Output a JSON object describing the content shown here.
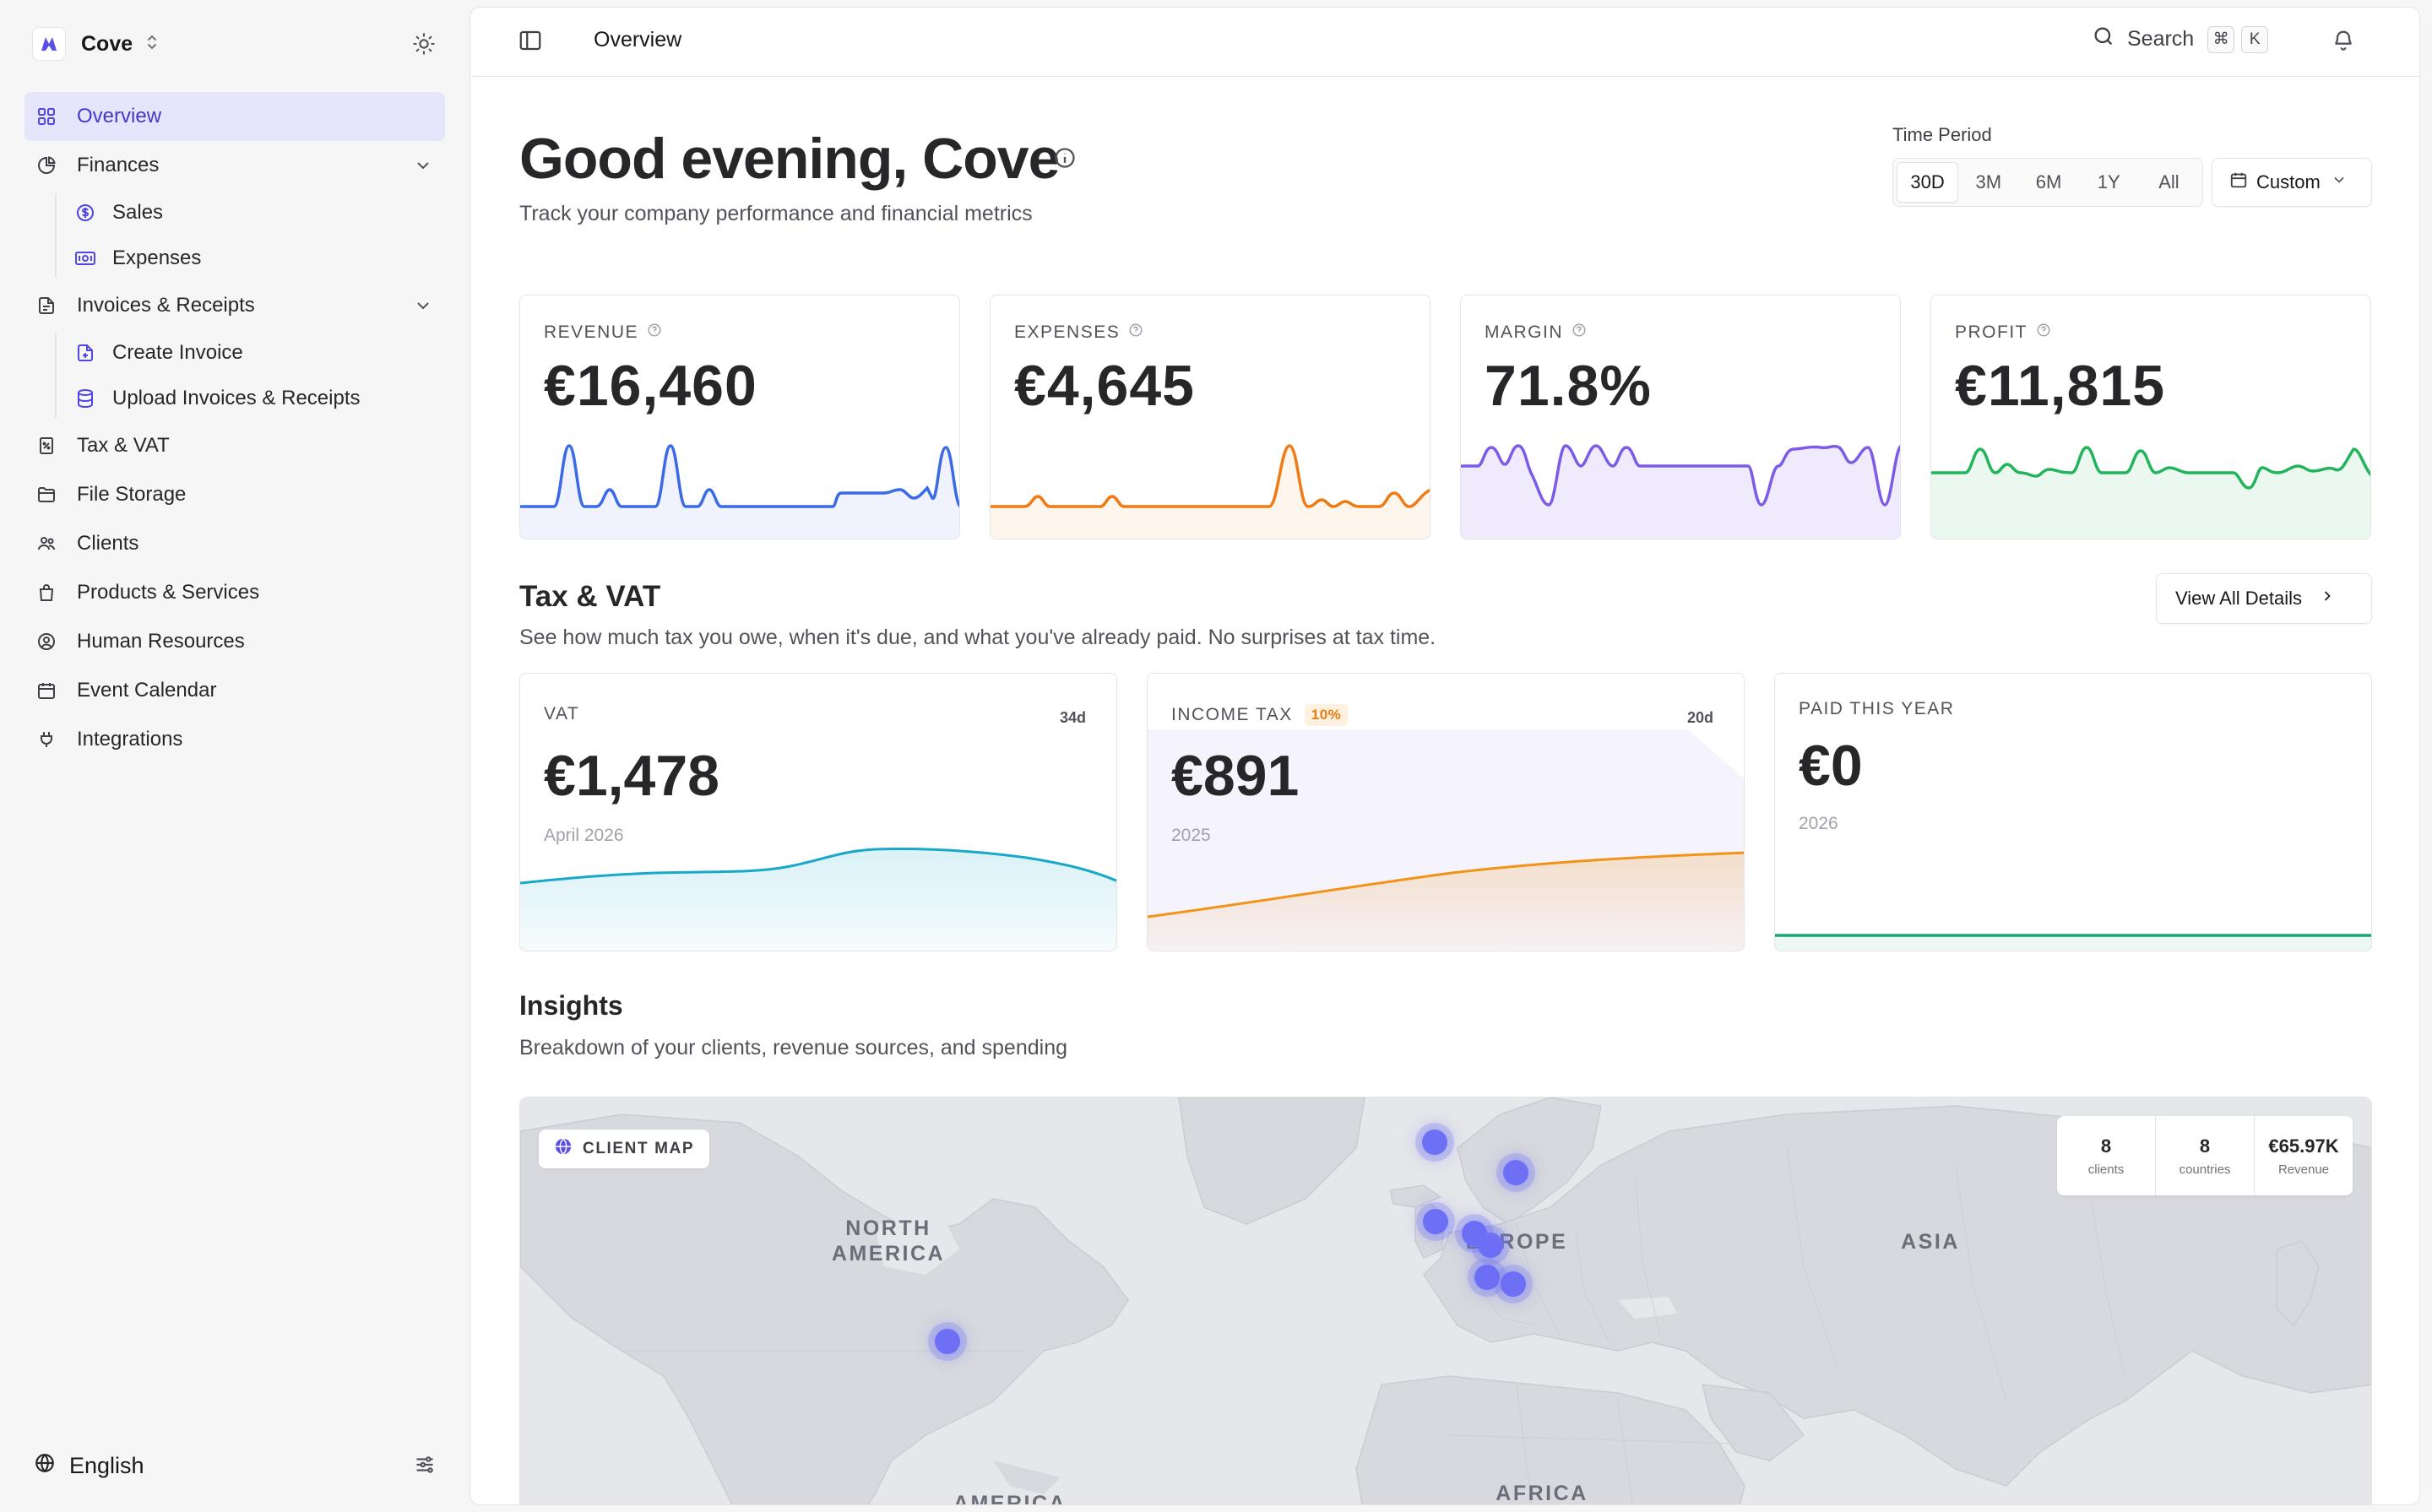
{
  "brand": {
    "name": "Cove"
  },
  "colors": {
    "accent": "#4f46e5",
    "revenue": "#3b6ae6",
    "expenses": "#f07a14",
    "margin": "#7c5ce6",
    "profit": "#22b45a",
    "vat": "#18a8c8",
    "income_tax": "#f29318",
    "paid": "#19a47a"
  },
  "sidebar": {
    "items": [
      {
        "label": "Overview",
        "icon": "grid-icon",
        "active": true
      },
      {
        "label": "Finances",
        "icon": "pie-chart-icon",
        "expanded": true,
        "children": [
          {
            "label": "Sales",
            "icon": "dollar-circle-icon"
          },
          {
            "label": "Expenses",
            "icon": "banknote-icon"
          }
        ]
      },
      {
        "label": "Invoices & Receipts",
        "icon": "document-icon",
        "expanded": true,
        "children": [
          {
            "label": "Create Invoice",
            "icon": "file-plus-icon"
          },
          {
            "label": "Upload Invoices & Receipts",
            "icon": "database-icon"
          }
        ]
      },
      {
        "label": "Tax & VAT",
        "icon": "receipt-tax-icon"
      },
      {
        "label": "File Storage",
        "icon": "folder-icon"
      },
      {
        "label": "Clients",
        "icon": "users-icon"
      },
      {
        "label": "Products & Services",
        "icon": "shopping-bag-icon"
      },
      {
        "label": "Human Resources",
        "icon": "user-circle-icon"
      },
      {
        "label": "Event Calendar",
        "icon": "calendar-icon"
      },
      {
        "label": "Integrations",
        "icon": "plug-icon"
      }
    ],
    "language": "English"
  },
  "header": {
    "breadcrumb": "Overview",
    "search_label": "Search",
    "shortcut": [
      "⌘",
      "K"
    ]
  },
  "hero": {
    "greeting": "Good evening, Cove",
    "subtitle": "Track your company performance and financial metrics"
  },
  "time_period": {
    "label": "Time Period",
    "options": [
      "30D",
      "3M",
      "6M",
      "1Y",
      "All"
    ],
    "selected": "30D",
    "custom_label": "Custom"
  },
  "kpis": [
    {
      "name": "REVENUE",
      "value": "€16,460"
    },
    {
      "name": "EXPENSES",
      "value": "€4,645"
    },
    {
      "name": "MARGIN",
      "value": "71.8%"
    },
    {
      "name": "PROFIT",
      "value": "€11,815"
    }
  ],
  "tax_section": {
    "title": "Tax & VAT",
    "subtitle": "See how much tax you owe, when it's due, and what you've already paid. No surprises at tax time.",
    "view_all": "View All Details",
    "cards": [
      {
        "name": "VAT",
        "badge": "",
        "days": "34d",
        "value": "€1,478",
        "period": "April 2026"
      },
      {
        "name": "INCOME TAX",
        "badge": "10%",
        "days": "20d",
        "value": "€891",
        "period": "2025"
      },
      {
        "name": "PAID THIS YEAR",
        "badge": "",
        "days": "",
        "value": "€0",
        "period": "2026"
      }
    ]
  },
  "insights": {
    "title": "Insights",
    "subtitle": "Breakdown of your clients, revenue sources, and spending",
    "map": {
      "tag": "CLIENT MAP",
      "stats": [
        {
          "value": "8",
          "label": "clients"
        },
        {
          "value": "8",
          "label": "countries"
        },
        {
          "value": "€65.97K",
          "label": "Revenue"
        }
      ],
      "regions": [
        "NORTH AMERICA",
        "EUROPE",
        "ASIA",
        "AFRICA",
        "AMERICA"
      ]
    }
  }
}
